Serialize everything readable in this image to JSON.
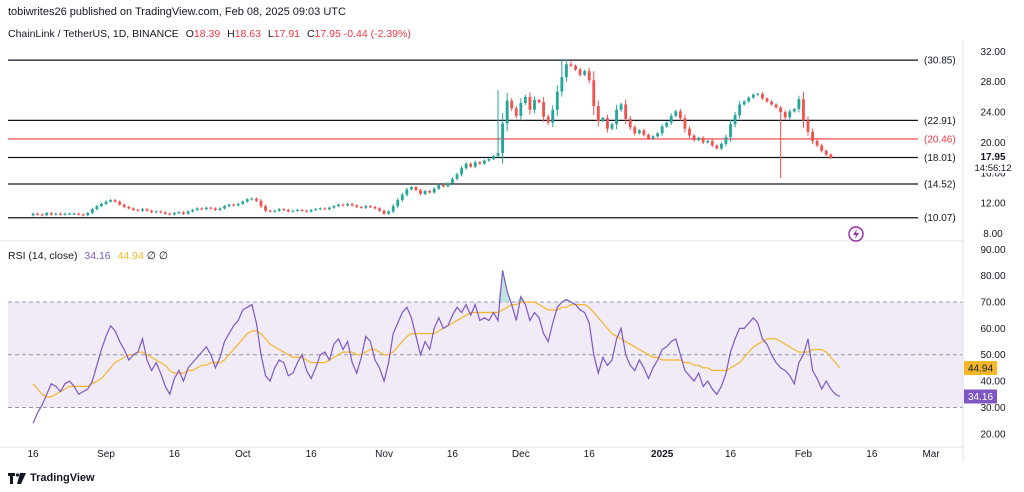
{
  "header": {
    "text": "tobiwrites26 published on TradingView.com, Feb 08, 2025 09:03 UTC"
  },
  "legend": {
    "symbol": "ChainLink / TetherUS, 1D, BINANCE",
    "o_label": "O",
    "o": "18.39",
    "h_label": "H",
    "h": "18.63",
    "l_label": "L",
    "l": "17.91",
    "c_label": "C",
    "c": "17.95",
    "change": "-0.44 (-2.39%)"
  },
  "rsi_legend": {
    "label": "RSI (14, close)",
    "rsi": "34.16",
    "ma": "44.94",
    "sym1": "∅",
    "sym2": "∅"
  },
  "footer": {
    "brand": "TradingView"
  },
  "countdown": "14:56:12",
  "colors": {
    "up": "#26a69a",
    "down": "#ef5350",
    "rsi": "#7e57c2",
    "rsi_ma": "#f5b72a",
    "red_line": "#f23645",
    "band": "#ede7f6"
  },
  "chart_data": [
    {
      "type": "candlestick",
      "title": "ChainLink / TetherUS, 1D, BINANCE",
      "ylim": [
        7.4,
        33.5
      ],
      "y_ticks": [
        8,
        12,
        16,
        20,
        24,
        28,
        32
      ],
      "y_tick_labels": [
        "8.00",
        "12.00",
        "16.00",
        "20.00",
        "24.00",
        "28.00",
        "32.00"
      ],
      "last_price": 17.95,
      "last_price_label": "17.95",
      "levels": [
        {
          "value": 30.85,
          "label": "(30.85)",
          "color": "#131722"
        },
        {
          "value": 22.91,
          "label": "(22.91)",
          "color": "#131722"
        },
        {
          "value": 20.46,
          "label": "(20.46)",
          "color": "#f23645"
        },
        {
          "value": 18.01,
          "label": "(18.01)",
          "color": "#131722"
        },
        {
          "value": 14.52,
          "label": "(14.52)",
          "color": "#131722"
        },
        {
          "value": 10.07,
          "label": "(10.07)",
          "color": "#131722"
        }
      ],
      "x_tick_labels": [
        "16",
        "Sep",
        "16",
        "Oct",
        "16",
        "Nov",
        "16",
        "Dec",
        "16",
        "2025",
        "16",
        "Feb",
        "16",
        "Mar"
      ],
      "x_tick_index": [
        0,
        16,
        31,
        46,
        61,
        77,
        92,
        107,
        122,
        138,
        153,
        169,
        184,
        197
      ],
      "index_range": [
        -5.5,
        204
      ],
      "closes": [
        10.6,
        10.5,
        10.4,
        10.7,
        10.5,
        10.6,
        10.5,
        10.6,
        10.6,
        10.6,
        10.5,
        10.4,
        10.7,
        11.2,
        11.6,
        11.9,
        12.2,
        12.4,
        12.2,
        11.8,
        11.5,
        11.3,
        11.1,
        11.0,
        11.2,
        11.0,
        10.8,
        10.9,
        10.8,
        10.6,
        10.5,
        10.7,
        10.8,
        10.6,
        10.9,
        11.1,
        11.3,
        11.2,
        11.4,
        11.3,
        11.1,
        11.3,
        11.6,
        11.8,
        11.7,
        11.9,
        12.2,
        12.5,
        12.6,
        12.3,
        11.6,
        11.0,
        10.9,
        11.0,
        11.2,
        11.1,
        10.9,
        11.0,
        11.1,
        11.0,
        10.9,
        11.1,
        11.2,
        11.3,
        11.2,
        11.4,
        11.6,
        11.8,
        11.7,
        11.9,
        11.7,
        11.5,
        11.4,
        11.6,
        11.5,
        11.3,
        11.0,
        10.6,
        10.9,
        11.6,
        12.4,
        13.1,
        13.8,
        14.1,
        13.7,
        13.2,
        13.6,
        13.4,
        13.9,
        14.4,
        14.2,
        14.6,
        15.2,
        15.8,
        16.6,
        17.2,
        16.8,
        17.4,
        17.2,
        17.6,
        17.8,
        18.2,
        18.6,
        22.5,
        25.5,
        24.5,
        23.5,
        25.2,
        26.0,
        24.3,
        25.6,
        25.3,
        23.4,
        22.6,
        24.3,
        26.7,
        28.6,
        30.3,
        30.1,
        29.6,
        28.9,
        29.4,
        28.2,
        24.8,
        22.8,
        23.2,
        21.8,
        22.4,
        24.3,
        25.0,
        23.1,
        22.0,
        21.2,
        21.6,
        21.0,
        20.5,
        20.8,
        21.2,
        22.1,
        22.6,
        23.5,
        24.1,
        23.2,
        21.8,
        20.9,
        20.3,
        20.6,
        20.0,
        20.2,
        19.6,
        19.2,
        19.8,
        20.7,
        22.4,
        23.6,
        25.0,
        25.4,
        25.9,
        26.3,
        26.4,
        25.8,
        25.4,
        25.0,
        24.6,
        24.0,
        23.3,
        24.1,
        24.4,
        25.7,
        22.9,
        21.4,
        20.2,
        19.6,
        18.9,
        18.4,
        17.95
      ],
      "wick_highs": {
        "102": 26.9,
        "116": 31.0,
        "117": 30.9,
        "118": 30.7
      },
      "wick_lows": {
        "164": 15.3
      }
    },
    {
      "type": "line",
      "title": "RSI (14, close)",
      "ylim": [
        15,
        92
      ],
      "y_ticks": [
        20,
        30,
        40,
        50,
        60,
        70,
        80,
        90
      ],
      "y_tick_labels": [
        "20.00",
        "30.00",
        "40.00",
        "50.00",
        "60.00",
        "70.00",
        "80.00",
        "90.00"
      ],
      "band": [
        30,
        70
      ],
      "midline": 50,
      "last_rsi_label": "34.16",
      "last_ma_label": "44.94",
      "series": [
        {
          "name": "RSI",
          "values": [
            24,
            28,
            31,
            35,
            39,
            38,
            36,
            39,
            40,
            38,
            35,
            36,
            37,
            40,
            46,
            52,
            57,
            61,
            59,
            55,
            52,
            48,
            50,
            51,
            56,
            48,
            44,
            47,
            43,
            38,
            35,
            41,
            44,
            40,
            45,
            47,
            49,
            51,
            53,
            50,
            45,
            49,
            55,
            58,
            61,
            63,
            67,
            68,
            69,
            62,
            50,
            42,
            40,
            45,
            48,
            47,
            42,
            43,
            47,
            50,
            44,
            41,
            45,
            50,
            51,
            48,
            54,
            56,
            52,
            55,
            47,
            43,
            49,
            57,
            55,
            48,
            45,
            40,
            47,
            58,
            62,
            66,
            68,
            64,
            57,
            50,
            55,
            52,
            60,
            64,
            60,
            61,
            65,
            68,
            66,
            69,
            65,
            69,
            63,
            64,
            63,
            66,
            63,
            82,
            74,
            69,
            63,
            72,
            69,
            63,
            66,
            64,
            58,
            55,
            62,
            68,
            70,
            71,
            70,
            69,
            67,
            66,
            62,
            50,
            43,
            49,
            46,
            48,
            56,
            60,
            50,
            46,
            44,
            48,
            45,
            41,
            45,
            48,
            52,
            53,
            55,
            56,
            50,
            44,
            42,
            40,
            43,
            38,
            40,
            37,
            35,
            38,
            43,
            51,
            56,
            60,
            60,
            62,
            64,
            62,
            56,
            54,
            50,
            47,
            45,
            44,
            42,
            39,
            47,
            50,
            56,
            44,
            41,
            37,
            40,
            37,
            35,
            34.16
          ]
        },
        {
          "name": "MA",
          "values": [
            39,
            37,
            35,
            34,
            34,
            35,
            36,
            37,
            38,
            38,
            38,
            38,
            38,
            39,
            40,
            41,
            43,
            45,
            47,
            48,
            49,
            50,
            50,
            51,
            51,
            50,
            49,
            48,
            47,
            46,
            44,
            43,
            43,
            43,
            44,
            44,
            45,
            46,
            46,
            47,
            47,
            47,
            48,
            50,
            52,
            54,
            56,
            58,
            59,
            59,
            58,
            56,
            54,
            53,
            52,
            51,
            50,
            49,
            49,
            49,
            48,
            47,
            47,
            47,
            47,
            48,
            49,
            50,
            51,
            51,
            51,
            50,
            50,
            51,
            52,
            52,
            51,
            50,
            50,
            51,
            53,
            55,
            57,
            58,
            58,
            58,
            58,
            58,
            58,
            59,
            60,
            61,
            62,
            63,
            64,
            65,
            66,
            66,
            66,
            66,
            66,
            66,
            66,
            67,
            68,
            69,
            69,
            70,
            70,
            70,
            70,
            69,
            68,
            67,
            67,
            67,
            68,
            68,
            69,
            69,
            69,
            69,
            68,
            66,
            64,
            62,
            60,
            58,
            57,
            56,
            55,
            54,
            53,
            52,
            51,
            50,
            49,
            49,
            48,
            48,
            48,
            48,
            48,
            47,
            47,
            46,
            46,
            45,
            45,
            44,
            44,
            44,
            44,
            45,
            46,
            47,
            49,
            51,
            53,
            54,
            55,
            56,
            56,
            56,
            55,
            54,
            53,
            52,
            51,
            51,
            51,
            52,
            52,
            52,
            51,
            49,
            47,
            44.94
          ]
        }
      ]
    }
  ]
}
